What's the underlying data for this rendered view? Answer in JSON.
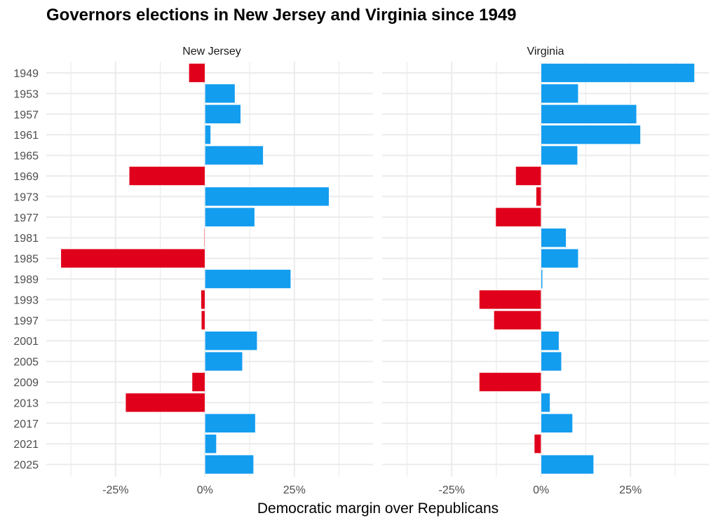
{
  "chart_data": {
    "type": "bar",
    "orientation": "horizontal",
    "title": "Governors elections in New Jersey and Virginia since 1949",
    "xlabel": "Democratic margin over Republicans",
    "ylabel": "",
    "xlim": [
      -44,
      46
    ],
    "x_ticks": [
      -25,
      0,
      25
    ],
    "x_tick_labels": [
      "-25%",
      "0%",
      "25%"
    ],
    "x_minor_gridlines": [
      -37.5,
      -12.5,
      12.5,
      37.5
    ],
    "grid": true,
    "legend": "none",
    "colors": {
      "democratic": "#139DEF",
      "republican": "#E0001B",
      "grid": "#EBEBEB"
    },
    "categories": [
      1949,
      1953,
      1957,
      1961,
      1965,
      1969,
      1973,
      1977,
      1981,
      1985,
      1989,
      1993,
      1997,
      2001,
      2005,
      2009,
      2013,
      2017,
      2021,
      2025
    ],
    "series": [
      {
        "name": "New Jersey",
        "values": [
          -4.5,
          8.4,
          10.0,
          1.6,
          16.3,
          -21.2,
          34.7,
          13.9,
          -0.2,
          -40.3,
          24.0,
          -1.1,
          -1.0,
          14.6,
          10.5,
          -3.6,
          -22.2,
          14.1,
          3.2,
          13.6
        ]
      },
      {
        "name": "Virginia",
        "values": [
          42.9,
          10.4,
          26.7,
          27.8,
          10.2,
          -7.1,
          -1.4,
          -12.7,
          7.0,
          10.4,
          0.4,
          -17.3,
          -13.2,
          5.0,
          5.7,
          -17.3,
          2.5,
          8.8,
          -1.9,
          14.7
        ]
      }
    ]
  }
}
